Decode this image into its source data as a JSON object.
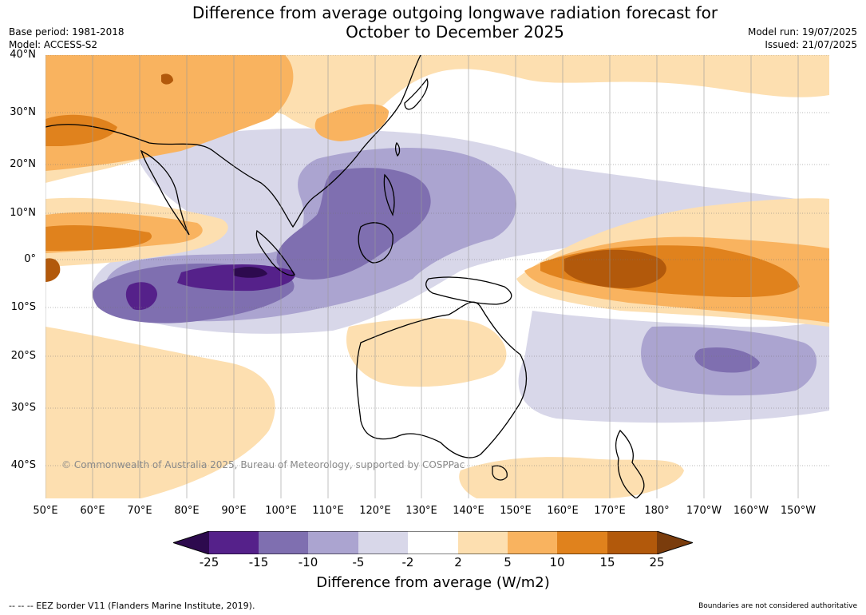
{
  "title_line1": "Difference from average outgoing longwave radiation forecast for",
  "title_line2": "October to December 2025",
  "base_period": "Base period: 1981-2018",
  "model": "Model: ACCESS-S2",
  "model_run": "Model run: 19/07/2025",
  "issued": "Issued: 21/07/2025",
  "lat_labels": [
    "40°N",
    "30°N",
    "20°N",
    "10°N",
    "0°",
    "10°S",
    "20°S",
    "30°S",
    "40°S"
  ],
  "lon_labels": [
    "50°E",
    "60°E",
    "70°E",
    "80°E",
    "90°E",
    "100°E",
    "110°E",
    "120°E",
    "130°E",
    "140°E",
    "150°E",
    "160°E",
    "170°E",
    "180°",
    "170°W",
    "160°W",
    "150°W"
  ],
  "copyright": "© Commonwealth of Australia 2025, Bureau of Meteorology, supported by COSPPac",
  "colorbar": {
    "ticks": [
      "-25",
      "-15",
      "-10",
      "-5",
      "-2",
      "2",
      "5",
      "10",
      "15",
      "25"
    ],
    "colors": [
      "#2d0a4e",
      "#55218a",
      "#7f6fb0",
      "#aba4d0",
      "#d8d7e9",
      "#ffffff",
      "#fddfb0",
      "#f9b35f",
      "#e0821d",
      "#b2590b",
      "#7a3c0c"
    ],
    "label": "Difference from average (W/m2)"
  },
  "footer_left": "--  --  -- EEZ border V11 (Flanders Marine Institute, 2019).",
  "footer_right": "Boundaries are not considered authoritative"
}
